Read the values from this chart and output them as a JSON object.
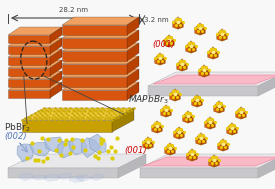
{
  "bg_color": "#f8f8f8",
  "orange_top": "#f0a060",
  "orange_front": "#d85510",
  "orange_side": "#b84000",
  "gold_top": "#f0cc44",
  "gold_front": "#c8a000",
  "gold_side": "#a08000",
  "pink": "#ffaabb",
  "pink_edge": "#ee7799",
  "platform_top": "#e8e8ea",
  "platform_front": "#c8c8cc",
  "platform_side": "#b8b8bc",
  "crystal_top": "#e8c030",
  "crystal_front": "#d86010",
  "crystal_side": "#b84808",
  "crystal_dot": "#ffee88",
  "blue_crystal": "#aabbdd",
  "blue_crystal_edge": "#7799bb",
  "yellow_dot": "#ddcc00",
  "text_dark": "#333333",
  "text_red": "#cc0000",
  "text_blue": "#5577bb",
  "dim_line": "#444444"
}
